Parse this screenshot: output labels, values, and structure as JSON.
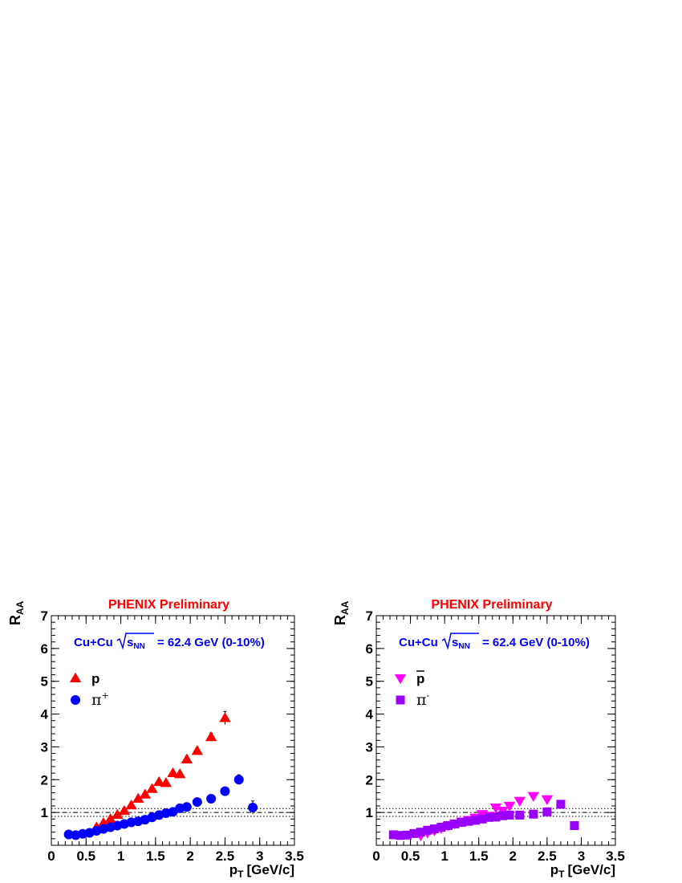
{
  "chart_data": [
    {
      "type": "scatter",
      "title": "PHENIX Preliminary",
      "ylabel": "R",
      "ylabel_sub": "AA",
      "xlabel": "p",
      "xlabel_sub": "T",
      "xlabel_unit": "[GeV/c]",
      "annotation": {
        "system": "Cu+Cu",
        "sqrt_s": "s",
        "sqrt_s_sub": "NN",
        "energy": "= 62.4 GeV (0-10%)"
      },
      "xlim": [
        0,
        3.5
      ],
      "ylim": [
        0,
        7
      ],
      "x_ticks": [
        "0",
        "0.5",
        "1",
        "1.5",
        "2",
        "2.5",
        "3",
        "3.5"
      ],
      "y_ticks": [
        "1",
        "2",
        "3",
        "4",
        "5",
        "6",
        "7"
      ],
      "reference_lines": {
        "dashed": 1.0,
        "dotted_band": [
          0.88,
          1.12
        ]
      },
      "legend": [
        {
          "label": "p",
          "superscript": "",
          "marker": "triangle-up",
          "color": "#ff0000"
        },
        {
          "label": "π",
          "superscript": "+",
          "marker": "circle",
          "color": "#0000ff"
        }
      ],
      "series": [
        {
          "name": "p",
          "marker": "triangle-up",
          "color": "#ff0000",
          "points": [
            [
              0.65,
              0.55
            ],
            [
              0.75,
              0.68
            ],
            [
              0.85,
              0.8
            ],
            [
              0.95,
              0.93
            ],
            [
              1.05,
              1.05
            ],
            [
              1.15,
              1.22
            ],
            [
              1.25,
              1.42
            ],
            [
              1.35,
              1.55
            ],
            [
              1.45,
              1.72
            ],
            [
              1.55,
              1.93
            ],
            [
              1.65,
              1.9
            ],
            [
              1.75,
              2.2
            ],
            [
              1.85,
              2.17
            ],
            [
              1.95,
              2.62
            ],
            [
              2.1,
              2.88
            ],
            [
              2.3,
              3.3
            ],
            [
              2.5,
              3.88
            ]
          ],
          "errors": [
            0.03,
            0.03,
            0.03,
            0.04,
            0.04,
            0.04,
            0.05,
            0.05,
            0.06,
            0.06,
            0.07,
            0.08,
            0.08,
            0.1,
            0.1,
            0.12,
            0.2
          ]
        },
        {
          "name": "π+",
          "marker": "circle",
          "color": "#0000ff",
          "points": [
            [
              0.25,
              0.33
            ],
            [
              0.35,
              0.31
            ],
            [
              0.45,
              0.35
            ],
            [
              0.55,
              0.38
            ],
            [
              0.65,
              0.44
            ],
            [
              0.75,
              0.5
            ],
            [
              0.85,
              0.55
            ],
            [
              0.95,
              0.6
            ],
            [
              1.05,
              0.65
            ],
            [
              1.15,
              0.7
            ],
            [
              1.25,
              0.73
            ],
            [
              1.35,
              0.78
            ],
            [
              1.45,
              0.85
            ],
            [
              1.55,
              0.92
            ],
            [
              1.65,
              0.98
            ],
            [
              1.75,
              1.02
            ],
            [
              1.85,
              1.13
            ],
            [
              1.95,
              1.17
            ],
            [
              2.1,
              1.32
            ],
            [
              2.3,
              1.42
            ],
            [
              2.5,
              1.65
            ],
            [
              2.7,
              2.0
            ],
            [
              2.9,
              1.15
            ]
          ],
          "errors": [
            0.02,
            0.02,
            0.02,
            0.02,
            0.02,
            0.02,
            0.02,
            0.02,
            0.02,
            0.02,
            0.02,
            0.02,
            0.03,
            0.03,
            0.03,
            0.03,
            0.04,
            0.04,
            0.05,
            0.06,
            0.07,
            0.15,
            0.2
          ]
        }
      ]
    },
    {
      "type": "scatter",
      "title": "PHENIX Preliminary",
      "ylabel": "R",
      "ylabel_sub": "AA",
      "xlabel": "p",
      "xlabel_sub": "T",
      "xlabel_unit": "[GeV/c]",
      "annotation": {
        "system": "Cu+Cu",
        "sqrt_s": "s",
        "sqrt_s_sub": "NN",
        "energy": "= 62.4 GeV (0-10%)"
      },
      "xlim": [
        0,
        3.5
      ],
      "ylim": [
        0,
        7
      ],
      "x_ticks": [
        "0",
        "0.5",
        "1",
        "1.5",
        "2",
        "2.5",
        "3",
        "3.5"
      ],
      "y_ticks": [
        "1",
        "2",
        "3",
        "4",
        "5",
        "6",
        "7"
      ],
      "reference_lines": {
        "dashed": 1.0,
        "dotted_band": [
          0.88,
          1.12
        ]
      },
      "legend": [
        {
          "label": "p",
          "superscript": "",
          "overline": true,
          "marker": "triangle-down",
          "color": "#ff00ff"
        },
        {
          "label": "π",
          "superscript": "-",
          "marker": "square",
          "color": "#9900ff"
        }
      ],
      "series": [
        {
          "name": "p̄",
          "marker": "triangle-down",
          "color": "#ff00ff",
          "points": [
            [
              0.65,
              0.3
            ],
            [
              0.75,
              0.38
            ],
            [
              0.85,
              0.45
            ],
            [
              0.95,
              0.52
            ],
            [
              1.05,
              0.6
            ],
            [
              1.15,
              0.66
            ],
            [
              1.25,
              0.72
            ],
            [
              1.35,
              0.77
            ],
            [
              1.45,
              0.84
            ],
            [
              1.55,
              0.95
            ],
            [
              1.65,
              0.9
            ],
            [
              1.75,
              1.15
            ],
            [
              1.85,
              1.05
            ],
            [
              1.95,
              1.2
            ],
            [
              2.1,
              1.35
            ],
            [
              2.3,
              1.5
            ],
            [
              2.5,
              1.4
            ]
          ],
          "errors": [
            0.02,
            0.02,
            0.02,
            0.02,
            0.02,
            0.03,
            0.03,
            0.03,
            0.03,
            0.04,
            0.04,
            0.05,
            0.05,
            0.06,
            0.07,
            0.08,
            0.1
          ]
        },
        {
          "name": "π-",
          "marker": "square",
          "color": "#9900ff",
          "points": [
            [
              0.25,
              0.32
            ],
            [
              0.35,
              0.3
            ],
            [
              0.45,
              0.31
            ],
            [
              0.55,
              0.36
            ],
            [
              0.65,
              0.4
            ],
            [
              0.75,
              0.46
            ],
            [
              0.85,
              0.5
            ],
            [
              0.95,
              0.55
            ],
            [
              1.05,
              0.6
            ],
            [
              1.15,
              0.65
            ],
            [
              1.25,
              0.7
            ],
            [
              1.35,
              0.73
            ],
            [
              1.45,
              0.76
            ],
            [
              1.55,
              0.8
            ],
            [
              1.65,
              0.85
            ],
            [
              1.75,
              0.86
            ],
            [
              1.85,
              0.9
            ],
            [
              1.95,
              0.92
            ],
            [
              2.1,
              0.92
            ],
            [
              2.3,
              0.95
            ],
            [
              2.5,
              1.02
            ],
            [
              2.7,
              1.25
            ],
            [
              2.9,
              0.6
            ]
          ],
          "errors": [
            0.02,
            0.02,
            0.02,
            0.02,
            0.02,
            0.02,
            0.02,
            0.02,
            0.02,
            0.02,
            0.02,
            0.02,
            0.02,
            0.02,
            0.03,
            0.03,
            0.03,
            0.03,
            0.04,
            0.05,
            0.06,
            0.1,
            0.1
          ]
        }
      ]
    }
  ]
}
